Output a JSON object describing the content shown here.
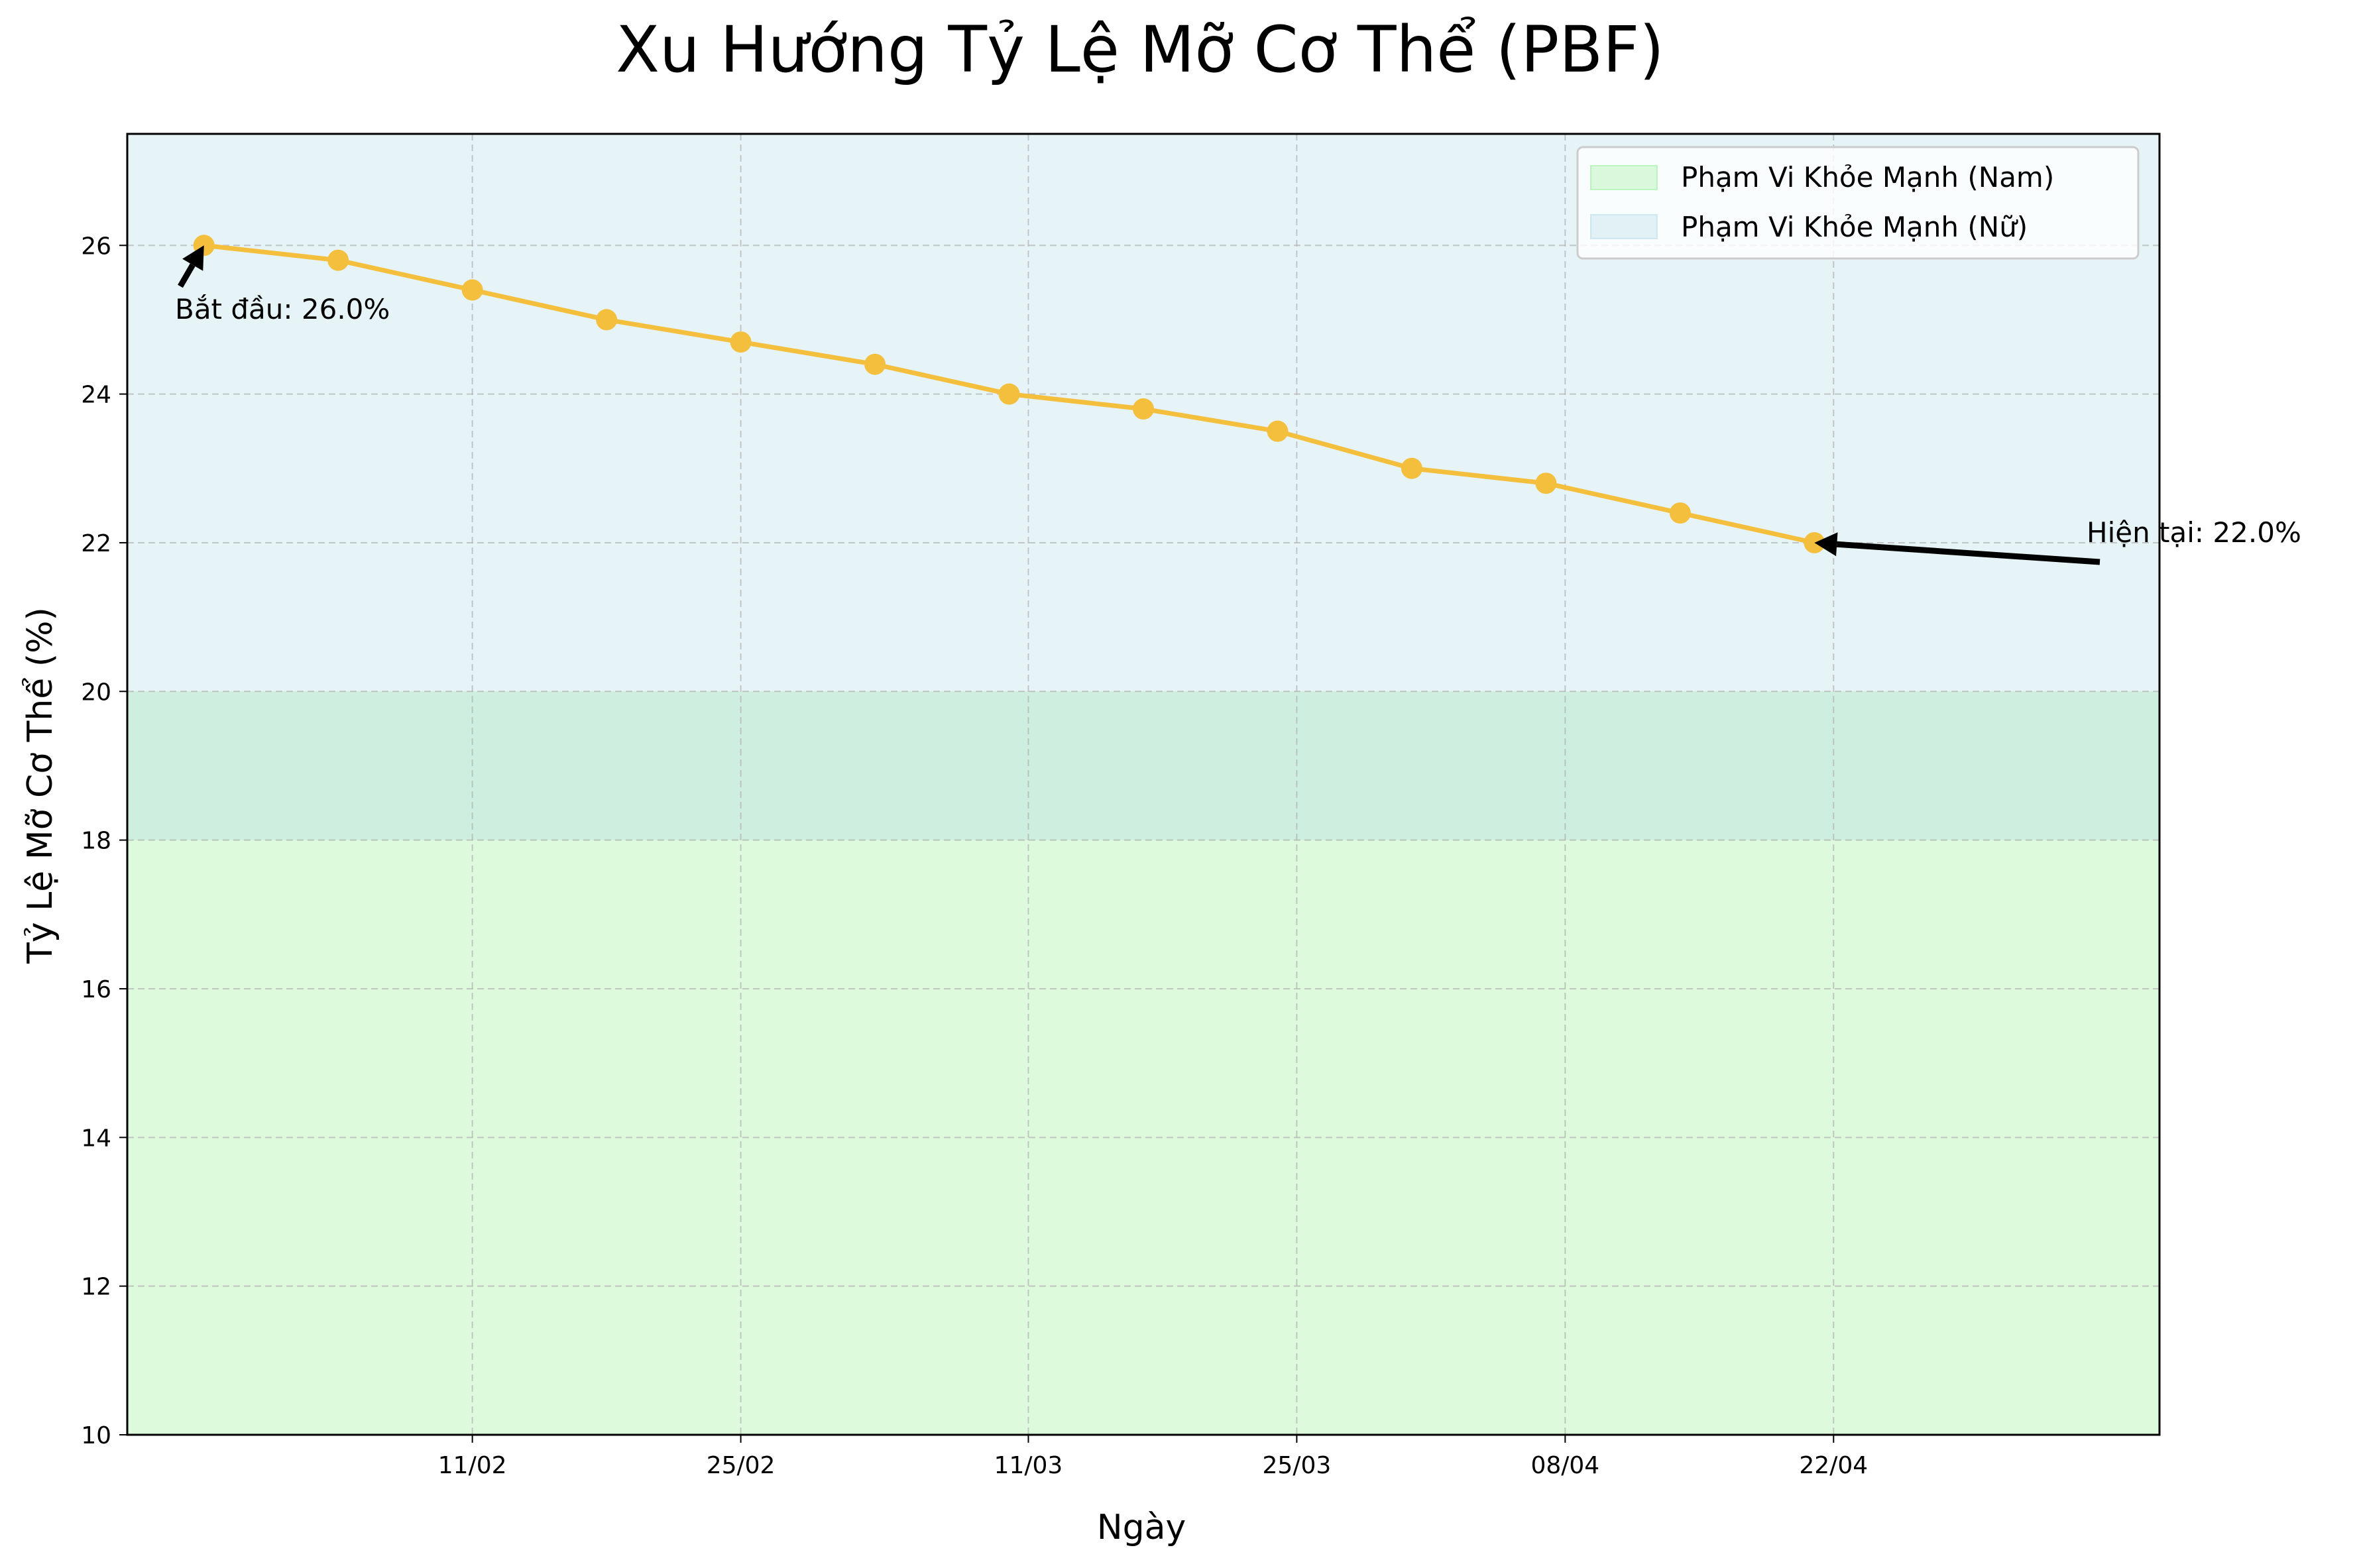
{
  "chart_data": {
    "type": "line",
    "title": "Xu Hướng Tỷ Lệ Mỡ Cơ Thể (PBF)",
    "xlabel": "Ngày",
    "ylabel": "Tỷ Lệ Mỡ Cơ Thể (%)",
    "ylim": [
      10,
      27.5
    ],
    "xlim": [
      "2024-01-24",
      "2024-05-09"
    ],
    "x_ticks": [
      {
        "date": "2024-02-11",
        "label": "11/02"
      },
      {
        "date": "2024-02-25",
        "label": "25/02"
      },
      {
        "date": "2024-03-11",
        "label": "11/03"
      },
      {
        "date": "2024-03-25",
        "label": "25/03"
      },
      {
        "date": "2024-04-08",
        "label": "08/04"
      },
      {
        "date": "2024-04-22",
        "label": "22/04"
      }
    ],
    "y_ticks": [
      10,
      12,
      14,
      16,
      18,
      20,
      22,
      24,
      26
    ],
    "grid": true,
    "legend_position": "top-right",
    "series": [
      {
        "color": "#f4bf3c",
        "x": [
          "2024-01-28",
          "2024-02-04",
          "2024-02-11",
          "2024-02-18",
          "2024-02-25",
          "2024-03-03",
          "2024-03-10",
          "2024-03-17",
          "2024-03-24",
          "2024-03-31",
          "2024-04-07",
          "2024-04-14",
          "2024-04-21"
        ],
        "y": [
          26.0,
          25.8,
          25.4,
          25.0,
          24.7,
          24.4,
          24.0,
          23.8,
          23.5,
          23.0,
          22.8,
          22.4,
          22.0
        ]
      }
    ],
    "bands": [
      {
        "name": "Phạm Vi Khỏe Mạnh (Nam)",
        "y_range": [
          10,
          20
        ],
        "color": "#90ee90",
        "alpha": 0.3
      },
      {
        "name": "Phạm Vi Khỏe Mạnh (Nữ)",
        "y_range": [
          18,
          27.5
        ],
        "color": "#add8e6",
        "alpha": 0.3
      }
    ],
    "annotations": [
      {
        "text": "Bắt đầu: 26.0%",
        "x": "2024-01-28",
        "y": 26.0,
        "placement": "below-left"
      },
      {
        "text": "Hiện tại: 22.0%",
        "x": "2024-04-21",
        "y": 22.0,
        "placement": "right"
      }
    ]
  }
}
